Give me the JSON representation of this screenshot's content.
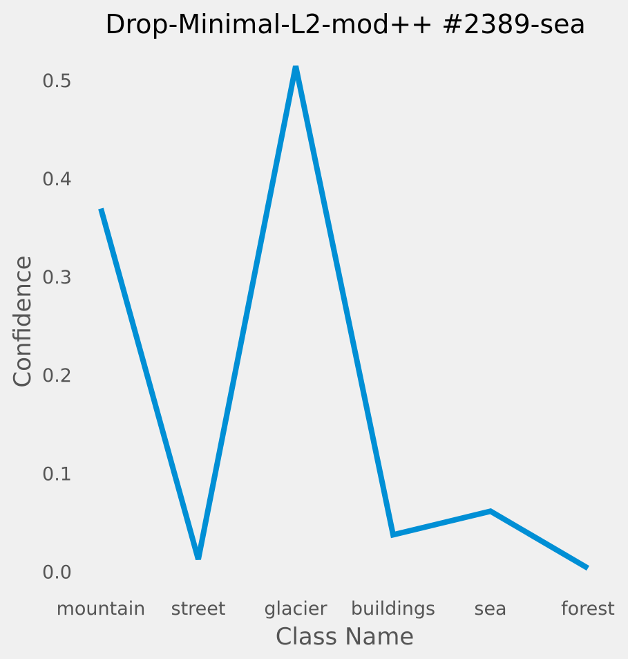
{
  "chart_data": {
    "type": "line",
    "title": "Drop-Minimal-L2-mod++ #2389-sea",
    "xlabel": "Class Name",
    "ylabel": "Confidence",
    "categories": [
      "mountain",
      "street",
      "glacier",
      "buildings",
      "sea",
      "forest"
    ],
    "series": [
      {
        "values": [
          0.37,
          0.013,
          0.515,
          0.038,
          0.062,
          0.004
        ]
      }
    ],
    "yticks": [
      "0.0",
      "0.1",
      "0.2",
      "0.3",
      "0.4",
      "0.5"
    ],
    "ylim": [
      -0.03,
      0.54
    ],
    "grid": false,
    "legend": "none",
    "line_color": "#008fd5",
    "background_color": "#f0f0f0"
  }
}
